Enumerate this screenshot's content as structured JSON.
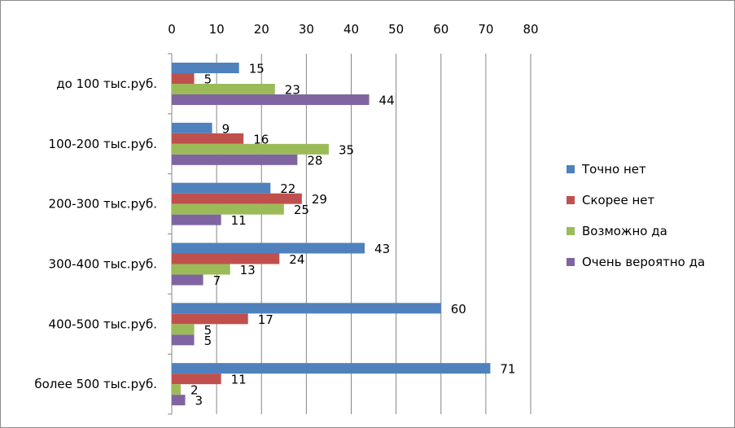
{
  "chart_data": {
    "type": "bar",
    "orientation": "horizontal",
    "x_axis_position": "top",
    "xlim": [
      0,
      80
    ],
    "x_ticks": [
      0,
      10,
      20,
      30,
      40,
      50,
      60,
      70,
      80
    ],
    "grid": true,
    "legend_position": "right",
    "categories": [
      "до 100 тыс.руб.",
      "100-200 тыс.руб.",
      "200-300 тыс.руб.",
      "300-400 тыс.руб.",
      "400-500 тыс.руб.",
      "более 500 тыс.руб."
    ],
    "series": [
      {
        "name": "Точно нет",
        "color": "#4F81BD",
        "values": [
          15,
          9,
          22,
          43,
          60,
          71
        ]
      },
      {
        "name": "Скорее нет",
        "color": "#C0504D",
        "values": [
          5,
          16,
          29,
          24,
          17,
          11
        ]
      },
      {
        "name": "Возможно да",
        "color": "#9BBB59",
        "values": [
          23,
          35,
          25,
          13,
          5,
          2
        ]
      },
      {
        "name": "Очень вероятно да",
        "color": "#8064A2",
        "values": [
          44,
          28,
          11,
          7,
          5,
          3
        ]
      }
    ]
  }
}
